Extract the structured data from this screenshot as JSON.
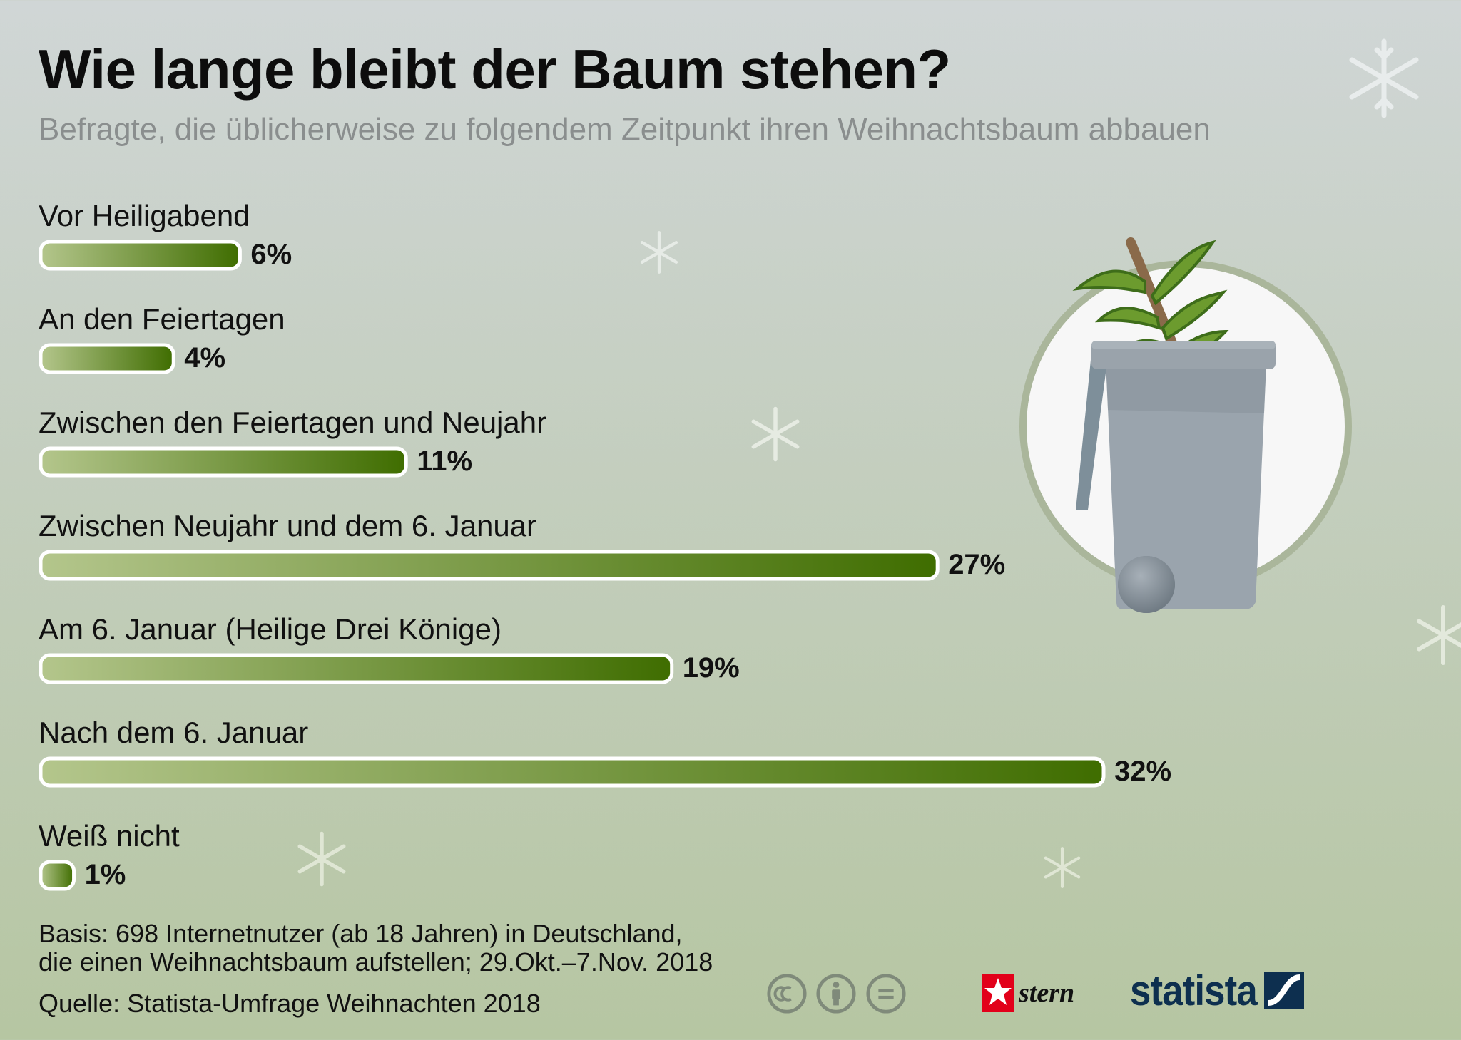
{
  "title": "Wie lange bleibt der Baum stehen?",
  "subtitle": "Befragte, die üblicherweise zu folgendem Zeitpunkt ihren Weihnachtsbaum abbauen",
  "chart_data": {
    "type": "bar",
    "orientation": "horizontal",
    "title": "Wie lange bleibt der Baum stehen?",
    "subtitle": "Befragte, die üblicherweise zu folgendem Zeitpunkt ihren Weihnachtsbaum abbauen",
    "categories": [
      "Vor Heiligabend",
      "An den Feiertagen",
      "Zwischen den Feiertagen und Neujahr",
      "Zwischen Neujahr und dem 6. Januar",
      "Am 6. Januar (Heilige Drei Könige)",
      "Nach dem 6. Januar",
      "Weiß nicht"
    ],
    "values": [
      6,
      4,
      11,
      27,
      19,
      32,
      1
    ],
    "value_labels": [
      "6%",
      "4%",
      "11%",
      "27%",
      "19%",
      "32%",
      "1%"
    ],
    "unit": "%",
    "xlim": [
      0,
      32
    ],
    "grid": false,
    "legend": "none",
    "bar_colors": {
      "light": "#b4c68c",
      "dark": "#3f6d00",
      "outline": "#ffffff"
    }
  },
  "footer": {
    "basis_line1": "Basis: 698 Internetnutzer (ab 18 Jahren) in Deutschland,",
    "basis_line2": "die einen Weihnachtsbaum aufstellen; 29.Okt.–7.Nov. 2018",
    "source": "Quelle: Statista-Umfrage Weihnachten 2018"
  },
  "logos": {
    "stern": "stern",
    "statista": "statista"
  },
  "icons": [
    "creative-commons-icon",
    "attribution-icon",
    "no-derivatives-icon",
    "snowflake-icon",
    "trash-bin-with-tree-icon"
  ]
}
